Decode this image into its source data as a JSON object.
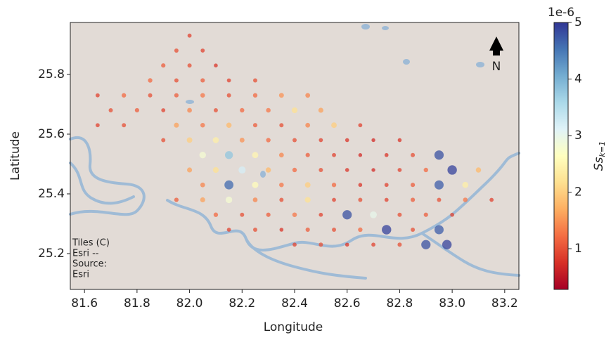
{
  "chart_data": {
    "type": "scatter",
    "xlabel": "Longitude",
    "ylabel": "Latitude",
    "xlim": [
      81.546,
      83.254
    ],
    "ylim": [
      25.08,
      25.974
    ],
    "xticks": [
      81.6,
      81.8,
      {
        "value": 82.0,
        "label": "82.0"
      },
      82.2,
      82.4,
      82.6,
      82.8,
      {
        "value": 83.0,
        "label": "83.0"
      },
      83.2
    ],
    "yticks": [
      25.2,
      25.4,
      25.6,
      25.8
    ],
    "colorbar": {
      "label": "Ss",
      "label_subscript": "k=1",
      "offset_label": "1e-6",
      "lim": [
        0.28,
        5
      ],
      "ticks": [
        1,
        2,
        3,
        4,
        5
      ],
      "colormap": [
        "#a50026",
        "#d73027",
        "#f46d43",
        "#fdae61",
        "#fee090",
        "#ffffbf",
        "#e0f3f8",
        "#abd9e9",
        "#74add1",
        "#4575b4",
        "#313695"
      ]
    },
    "north_label": "N",
    "attribution": [
      "Tiles (C)",
      "Esri --",
      "Source:",
      "Esri"
    ],
    "series": [
      {
        "x": [
          82.0,
          81.95,
          82.05,
          81.9,
          82.0,
          82.1,
          81.85,
          81.95,
          82.05,
          82.15,
          82.25,
          81.65,
          81.75,
          81.85,
          81.95,
          82.05,
          82.15,
          82.25,
          82.35,
          82.45,
          81.7,
          81.8,
          81.9,
          82.0,
          82.1,
          82.2,
          82.3,
          82.4,
          82.5,
          81.65,
          81.75,
          81.95,
          82.05,
          82.15,
          82.25,
          82.35,
          82.45,
          82.55,
          82.65,
          81.9,
          82.0,
          82.1,
          82.2,
          82.3,
          82.4,
          82.5,
          82.6,
          82.7,
          82.8,
          82.05,
          82.15,
          82.25,
          82.35,
          82.45,
          82.55,
          82.65,
          82.75,
          82.85,
          82.95,
          82.0,
          82.1,
          82.2,
          82.3,
          82.4,
          82.5,
          82.6,
          82.7,
          82.8,
          82.9,
          83.0,
          83.1,
          82.05,
          82.15,
          82.25,
          82.35,
          82.45,
          82.55,
          82.65,
          82.75,
          82.85,
          82.95,
          83.05,
          81.95,
          82.05,
          82.15,
          82.25,
          82.35,
          82.45,
          82.55,
          82.65,
          82.75,
          82.85,
          82.95,
          83.05,
          83.15,
          82.1,
          82.2,
          82.3,
          82.4,
          82.5,
          82.6,
          82.7,
          82.8,
          82.9,
          83.0,
          82.15,
          82.25,
          82.35,
          82.45,
          82.55,
          82.65,
          82.75,
          82.85,
          82.95,
          82.4,
          82.5,
          82.6,
          82.7,
          82.8,
          82.9,
          82.98
        ],
        "y": [
          25.93,
          25.88,
          25.88,
          25.83,
          25.83,
          25.83,
          25.78,
          25.78,
          25.78,
          25.78,
          25.78,
          25.73,
          25.73,
          25.73,
          25.73,
          25.73,
          25.73,
          25.73,
          25.73,
          25.73,
          25.68,
          25.68,
          25.68,
          25.68,
          25.68,
          25.68,
          25.68,
          25.68,
          25.68,
          25.63,
          25.63,
          25.63,
          25.63,
          25.63,
          25.63,
          25.63,
          25.63,
          25.63,
          25.63,
          25.58,
          25.58,
          25.58,
          25.58,
          25.58,
          25.58,
          25.58,
          25.58,
          25.58,
          25.58,
          25.53,
          25.53,
          25.53,
          25.53,
          25.53,
          25.53,
          25.53,
          25.53,
          25.53,
          25.53,
          25.48,
          25.48,
          25.48,
          25.48,
          25.48,
          25.48,
          25.48,
          25.48,
          25.48,
          25.48,
          25.48,
          25.48,
          25.43,
          25.43,
          25.43,
          25.43,
          25.43,
          25.43,
          25.43,
          25.43,
          25.43,
          25.43,
          25.43,
          25.38,
          25.38,
          25.38,
          25.38,
          25.38,
          25.38,
          25.38,
          25.38,
          25.38,
          25.38,
          25.38,
          25.38,
          25.38,
          25.33,
          25.33,
          25.33,
          25.33,
          25.33,
          25.33,
          25.33,
          25.33,
          25.33,
          25.33,
          25.28,
          25.28,
          25.28,
          25.28,
          25.28,
          25.28,
          25.28,
          25.28,
          25.28,
          25.23,
          25.23,
          25.23,
          25.23,
          25.23,
          25.23,
          25.23
        ],
        "values": [
          0.9,
          1.0,
          0.9,
          1.1,
          1.0,
          0.8,
          1.2,
          1.0,
          1.1,
          0.9,
          1.0,
          0.9,
          1.2,
          1.0,
          1.1,
          1.3,
          1.0,
          1.2,
          1.5,
          1.4,
          1.0,
          1.1,
          0.9,
          1.4,
          1.0,
          1.2,
          1.3,
          2.2,
          1.6,
          0.9,
          1.0,
          1.6,
          1.3,
          1.8,
          1.1,
          1.0,
          1.4,
          2.0,
          0.9,
          1.0,
          2.0,
          2.4,
          1.5,
          1.2,
          1.0,
          0.9,
          0.8,
          0.7,
          0.8,
          2.8,
          3.8,
          2.5,
          1.4,
          1.1,
          0.9,
          0.7,
          0.8,
          1.0,
          4.8,
          1.6,
          2.2,
          3.2,
          1.8,
          1.2,
          1.0,
          0.8,
          0.7,
          0.9,
          1.2,
          4.9,
          1.8,
          1.4,
          4.6,
          2.6,
          1.3,
          2.0,
          1.2,
          0.8,
          0.9,
          1.1,
          4.7,
          2.4,
          1.1,
          1.6,
          2.8,
          1.4,
          1.0,
          2.2,
          0.9,
          1.0,
          0.9,
          1.1,
          1.0,
          1.3,
          0.9,
          1.2,
          1.0,
          1.1,
          1.3,
          0.9,
          4.8,
          3.0,
          1.0,
          1.1,
          0.9,
          0.9,
          1.0,
          0.8,
          1.1,
          1.0,
          1.2,
          4.9,
          1.0,
          4.7,
          0.9,
          1.0,
          0.8,
          0.9,
          1.0,
          4.8,
          4.9
        ]
      }
    ]
  }
}
